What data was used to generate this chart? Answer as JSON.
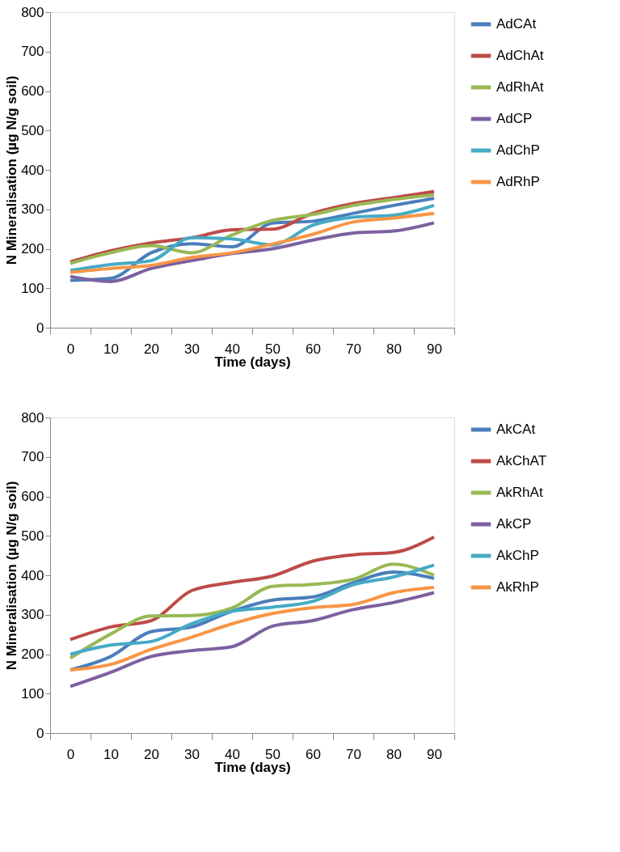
{
  "chart_data": [
    {
      "type": "line",
      "xlabel": "Time (days)",
      "ylabel": "N Mineralisation (µg N/g soil)",
      "categories": [
        "0",
        "10",
        "20",
        "30",
        "40",
        "50",
        "60",
        "70",
        "80",
        "90"
      ],
      "ylim": [
        0,
        800
      ],
      "yticks": [
        0,
        100,
        200,
        300,
        400,
        500,
        600,
        700,
        800
      ],
      "grid": false,
      "legend": "right",
      "line_style": "solid",
      "series": [
        {
          "name": "AdCAt",
          "color": "#4a7ebb",
          "values": [
            120,
            125,
            190,
            213,
            205,
            265,
            270,
            290,
            310,
            328
          ]
        },
        {
          "name": "AdChAt",
          "color": "#be4b48",
          "values": [
            167,
            195,
            215,
            228,
            248,
            250,
            290,
            315,
            330,
            345
          ]
        },
        {
          "name": "AdRhAt",
          "color": "#98b954",
          "values": [
            163,
            190,
            208,
            190,
            235,
            272,
            287,
            310,
            325,
            337
          ]
        },
        {
          "name": "AdCP",
          "color": "#7d60a0",
          "values": [
            130,
            117,
            150,
            170,
            188,
            200,
            222,
            240,
            245,
            266
          ]
        },
        {
          "name": "AdChP",
          "color": "#46aac5",
          "values": [
            145,
            160,
            170,
            228,
            225,
            210,
            260,
            280,
            285,
            310
          ]
        },
        {
          "name": "AdRhP",
          "color": "#f79646",
          "values": [
            140,
            150,
            158,
            178,
            190,
            212,
            237,
            268,
            278,
            290
          ]
        }
      ]
    },
    {
      "type": "line",
      "xlabel": "Time (days)",
      "ylabel": "N Mineralisation (µg N/g soil)",
      "categories": [
        "0",
        "10",
        "20",
        "30",
        "40",
        "50",
        "60",
        "70",
        "80",
        "90"
      ],
      "ylim": [
        0,
        800
      ],
      "yticks": [
        0,
        100,
        200,
        300,
        400,
        500,
        600,
        700,
        800
      ],
      "grid": false,
      "legend": "right",
      "line_style": "solid",
      "series": [
        {
          "name": "AkCAt",
          "color": "#4a7ebb",
          "values": [
            160,
            194,
            257,
            269,
            309,
            337,
            345,
            381,
            408,
            392
          ]
        },
        {
          "name": "AkChAT",
          "color": "#be4b48",
          "values": [
            237,
            269,
            285,
            361,
            382,
            398,
            436,
            452,
            458,
            497
          ]
        },
        {
          "name": "AkRhAt",
          "color": "#98b954",
          "values": [
            190,
            251,
            297,
            298,
            317,
            372,
            377,
            390,
            428,
            400
          ]
        },
        {
          "name": "AkCP",
          "color": "#7d60a0",
          "values": [
            118,
            154,
            194,
            209,
            219,
            271,
            285,
            313,
            331,
            356
          ]
        },
        {
          "name": "AkChP",
          "color": "#46aac5",
          "values": [
            200,
            223,
            232,
            277,
            309,
            319,
            334,
            376,
            396,
            426
          ]
        },
        {
          "name": "AkRhP",
          "color": "#f79646",
          "values": [
            160,
            174,
            212,
            243,
            277,
            303,
            318,
            326,
            356,
            369
          ]
        }
      ]
    }
  ]
}
